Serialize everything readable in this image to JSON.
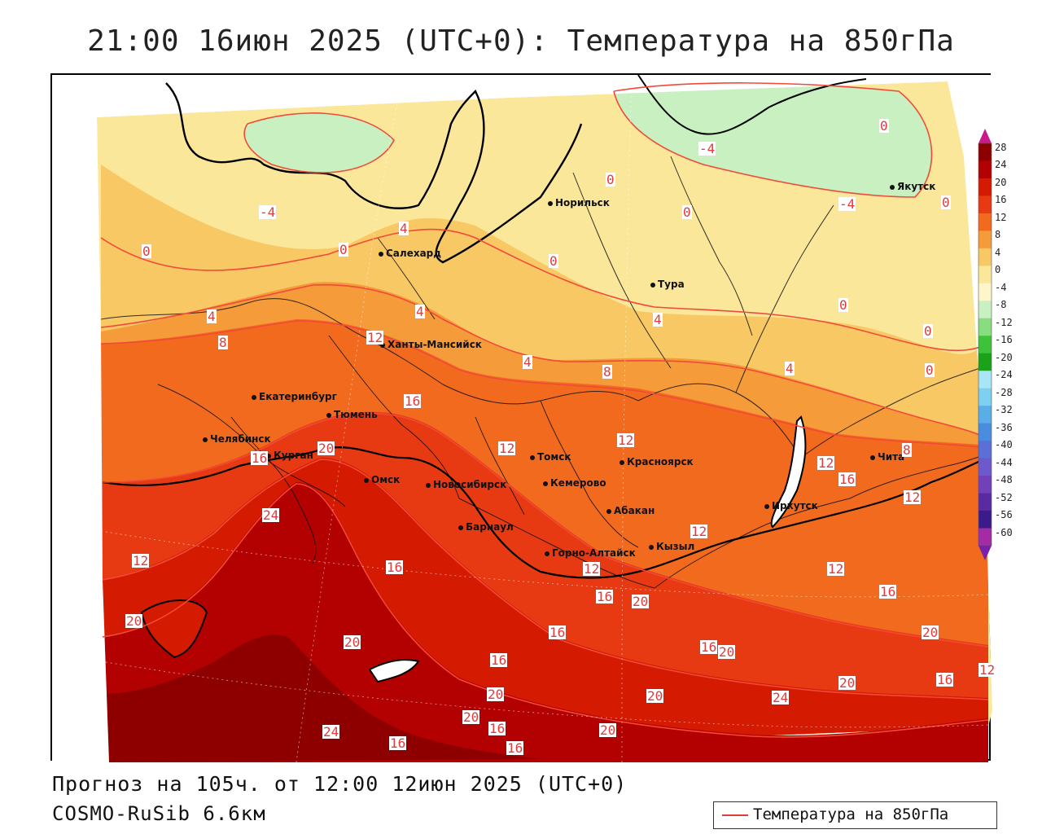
{
  "title": "21:00 16июн 2025 (UTC+0): Температура на 850гПа",
  "footer": {
    "forecast": "Прогноз на 105ч. от 12:00 12июн 2025 (UTC+0)",
    "model": "COSMO-RuSib 6.6км"
  },
  "legend": {
    "label": "Температура на 850гПа",
    "line_color": "#e23b3b"
  },
  "colorbar": {
    "levels": [
      "28",
      "24",
      "20",
      "16",
      "12",
      "8",
      "4",
      "0",
      "-4",
      "-8",
      "-12",
      "-16",
      "-20",
      "-24",
      "-28",
      "-32",
      "-36",
      "-40",
      "-44",
      "-48",
      "-52",
      "-56",
      "-60"
    ],
    "colors": [
      "#8e0000",
      "#b30000",
      "#d41a00",
      "#e83a12",
      "#f26a1e",
      "#f59b3a",
      "#f8c865",
      "#fbe79a",
      "#fdf6c9",
      "#c9f0c0",
      "#88dd7e",
      "#3ec23a",
      "#19a21a",
      "#a8e6f5",
      "#7ed0f0",
      "#5aaee8",
      "#4a8ddf",
      "#5c6fd6",
      "#6d58cc",
      "#7240b8",
      "#5a2aa2",
      "#3b1a8c",
      "#a52aa5"
    ]
  },
  "cities": [
    {
      "name": "Норильск"
    },
    {
      "name": "Якутск"
    },
    {
      "name": "Салехард"
    },
    {
      "name": "Тура"
    },
    {
      "name": "Ханты-Мансийск"
    },
    {
      "name": "Екатеринбург"
    },
    {
      "name": "Тюмень"
    },
    {
      "name": "Челябинск"
    },
    {
      "name": "Курган"
    },
    {
      "name": "Омск"
    },
    {
      "name": "Томск"
    },
    {
      "name": "Красноярск"
    },
    {
      "name": "Новосибирск"
    },
    {
      "name": "Кемерово"
    },
    {
      "name": "Абакан"
    },
    {
      "name": "Барнаул"
    },
    {
      "name": "Горно-Алтайск"
    },
    {
      "name": "Кызыл"
    },
    {
      "name": "Иркутск"
    },
    {
      "name": "Чита"
    }
  ],
  "contour_labels": [
    "0",
    "-4",
    "0",
    "0",
    "-4",
    "0",
    "-4",
    "4",
    "0",
    "0",
    "0",
    "0",
    "0",
    "4",
    "4",
    "4",
    "8",
    "4",
    "8",
    "4",
    "0",
    "12",
    "16",
    "12",
    "12",
    "12",
    "16",
    "12",
    "8",
    "20",
    "16",
    "12",
    "24",
    "12",
    "16",
    "12",
    "20",
    "16",
    "12",
    "20",
    "20",
    "16",
    "20",
    "16",
    "20",
    "16",
    "20",
    "20",
    "16",
    "24",
    "20",
    "16",
    "20",
    "16",
    "24",
    "16",
    "16",
    "20",
    "12"
  ]
}
